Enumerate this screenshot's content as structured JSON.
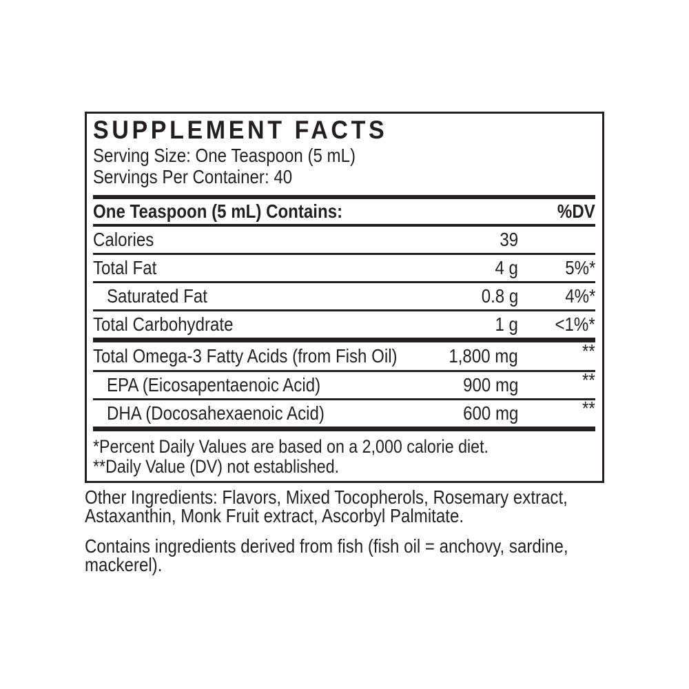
{
  "label": {
    "title": "SUPPLEMENT FACTS",
    "serving_size": "Serving Size: One Teaspoon (5 mL)",
    "servings_per_container": "Servings Per Container: 40",
    "contains_header": "One Teaspoon (5 mL) Contains:",
    "dv_header": "%DV",
    "rows": [
      {
        "name": "Calories",
        "amount": "39",
        "dv": ""
      },
      {
        "name": "Total Fat",
        "amount": "4 g",
        "dv": "5%*"
      },
      {
        "name": "Saturated Fat",
        "amount": "0.8 g",
        "dv": "4%*"
      },
      {
        "name": "Total Carbohydrate",
        "amount": "1 g",
        "dv": "<1%*"
      },
      {
        "name": "Total Omega-3 Fatty Acids (from Fish Oil)",
        "amount": "1,800 mg",
        "dv": "**"
      },
      {
        "name": "EPA (Eicosapentaenoic Acid)",
        "amount": "900 mg",
        "dv": "**"
      },
      {
        "name": "DHA (Docosahexaenoic Acid)",
        "amount": "600 mg",
        "dv": "**"
      }
    ],
    "footnotes": [
      "*Percent Daily Values are based on a 2,000 calorie diet.",
      "**Daily Value (DV) not established."
    ]
  },
  "below": {
    "other_ingredients_lines": [
      "Other Ingredients: Flavors, Mixed Tocopherols, Rosemary extract,",
      "Astaxanthin, Monk Fruit extract, Ascorbyl Palmitate."
    ],
    "contains_lines": [
      "Contains ingredients derived from fish (fish oil = anchovy, sardine,",
      "mackerel)."
    ]
  },
  "colors": {
    "text": "#231f20",
    "background": "#ffffff"
  }
}
